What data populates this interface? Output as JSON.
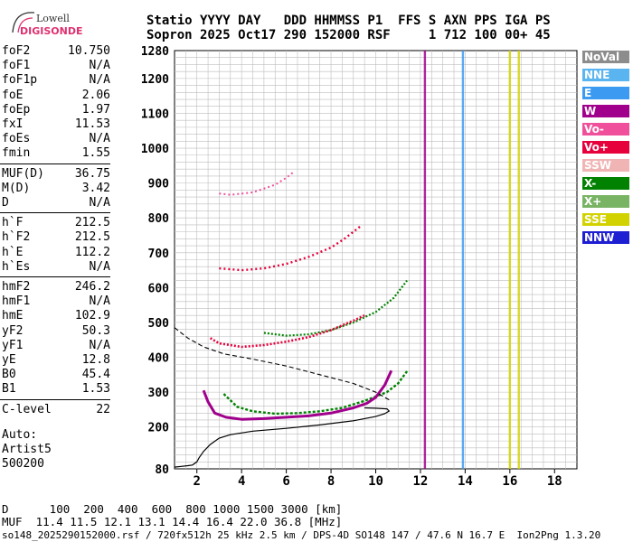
{
  "logo": {
    "line1": "Lowell",
    "line2": "DIGISONDE"
  },
  "header": {
    "labels": "Statio YYYY DAY   DDD HHMMSS P1  FFS S AXN PPS IGA PS",
    "values": "Sopron 2025 Oct17 290 152000 RSF     1 712 100 00+ 45"
  },
  "params_group1": [
    {
      "name": "foF2",
      "value": "10.750"
    },
    {
      "name": "foF1",
      "value": "N/A"
    },
    {
      "name": "foF1p",
      "value": "N/A"
    },
    {
      "name": "foE",
      "value": "2.06"
    },
    {
      "name": "foEp",
      "value": "1.97"
    },
    {
      "name": "fxI",
      "value": "11.53"
    },
    {
      "name": "foEs",
      "value": "N/A"
    },
    {
      "name": "fmin",
      "value": "1.55"
    }
  ],
  "params_group2": [
    {
      "name": "MUF(D)",
      "value": "36.75"
    },
    {
      "name": "M(D)",
      "value": "3.42"
    },
    {
      "name": "D",
      "value": "N/A"
    }
  ],
  "params_group3": [
    {
      "name": "h`F",
      "value": "212.5"
    },
    {
      "name": "h`F2",
      "value": "212.5"
    },
    {
      "name": "h`E",
      "value": "112.2"
    },
    {
      "name": "h`Es",
      "value": "N/A"
    }
  ],
  "params_group4": [
    {
      "name": "hmF2",
      "value": "246.2"
    },
    {
      "name": "hmF1",
      "value": "N/A"
    },
    {
      "name": "hmE",
      "value": "102.9"
    },
    {
      "name": "yF2",
      "value": "50.3"
    },
    {
      "name": "yF1",
      "value": "N/A"
    },
    {
      "name": "yE",
      "value": "12.8"
    },
    {
      "name": "B0",
      "value": "45.4"
    },
    {
      "name": "B1",
      "value": "1.53"
    }
  ],
  "params_group5": [
    {
      "name": "C-level",
      "value": "22"
    }
  ],
  "auto": {
    "line1": "Auto:",
    "line2": "Artist5",
    "line3": "500200"
  },
  "legend": [
    {
      "label": "NoVal",
      "color": "#8c8c8c"
    },
    {
      "label": "NNE",
      "color": "#5ab4f0"
    },
    {
      "label": "E",
      "color": "#3c9bf0"
    },
    {
      "label": "W",
      "color": "#a0008c"
    },
    {
      "label": "Vo-",
      "color": "#f0509b"
    },
    {
      "label": "Vo+",
      "color": "#e6003c"
    },
    {
      "label": "SSW",
      "color": "#f0b4b4"
    },
    {
      "label": "X-",
      "color": "#008200"
    },
    {
      "label": "X+",
      "color": "#78b464"
    },
    {
      "label": "SSE",
      "color": "#d2d200"
    },
    {
      "label": "NNW",
      "color": "#1e1ed2"
    }
  ],
  "footer": {
    "distance": "D      100  200  400  600  800 1000 1500 3000 [km]",
    "muf": "MUF  11.4 11.5 12.1 13.1 14.4 16.4 22.0 36.8 [MHz]",
    "info": "so148_2025290152000.rsf / 720fx512h 25 kHz 2.5 km / DPS-4D SO148 147 / 47.6 N 16.7 E  Ion2Png 1.3.20"
  },
  "chart_data": {
    "type": "scatter",
    "x_axis": {
      "label": "",
      "range": [
        1.0,
        19.0
      ],
      "ticks": [
        2,
        4,
        6,
        8,
        10,
        12,
        14,
        16,
        18
      ]
    },
    "y_axis": {
      "label": "",
      "range": [
        80,
        1280
      ],
      "ticks": [
        80,
        200,
        300,
        400,
        500,
        600,
        700,
        800,
        900,
        1000,
        1100,
        1200,
        1280
      ]
    },
    "grid": true,
    "legend_position": "right",
    "profile_solid": [
      [
        1.0,
        85
      ],
      [
        1.3,
        87
      ],
      [
        1.6,
        89
      ],
      [
        1.8,
        91
      ],
      [
        2.0,
        100
      ],
      [
        2.1,
        112
      ],
      [
        2.3,
        130
      ],
      [
        2.6,
        150
      ],
      [
        3.0,
        168
      ],
      [
        3.5,
        178
      ],
      [
        4.5,
        188
      ],
      [
        6.0,
        196
      ],
      [
        7.5,
        206
      ],
      [
        9.0,
        218
      ],
      [
        10.0,
        230
      ],
      [
        10.4,
        238
      ],
      [
        10.6,
        246
      ],
      [
        10.5,
        252
      ],
      [
        10.0,
        254
      ],
      [
        9.5,
        255
      ]
    ],
    "profile_dashed": [
      [
        1.0,
        485
      ],
      [
        1.6,
        455
      ],
      [
        2.3,
        430
      ],
      [
        3.2,
        410
      ],
      [
        4.5,
        395
      ],
      [
        6.0,
        375
      ],
      [
        7.5,
        350
      ],
      [
        9.0,
        325
      ],
      [
        10.0,
        300
      ],
      [
        10.6,
        278
      ]
    ],
    "trace_o_f2": [
      [
        2.3,
        305
      ],
      [
        2.5,
        272
      ],
      [
        2.8,
        240
      ],
      [
        3.3,
        228
      ],
      [
        4.0,
        222
      ],
      [
        5.0,
        224
      ],
      [
        6.0,
        228
      ],
      [
        7.0,
        232
      ],
      [
        8.0,
        240
      ],
      [
        9.0,
        255
      ],
      [
        9.6,
        268
      ],
      [
        10.0,
        285
      ],
      [
        10.4,
        320
      ],
      [
        10.7,
        362
      ]
    ],
    "trace_x_f2": [
      [
        3.2,
        295
      ],
      [
        3.8,
        258
      ],
      [
        4.5,
        245
      ],
      [
        5.5,
        238
      ],
      [
        6.5,
        240
      ],
      [
        7.5,
        245
      ],
      [
        8.5,
        255
      ],
      [
        9.5,
        275
      ],
      [
        10.5,
        300
      ],
      [
        11.0,
        325
      ],
      [
        11.4,
        360
      ]
    ],
    "trace_o_2hop": [
      [
        2.6,
        455
      ],
      [
        3.0,
        440
      ],
      [
        4.0,
        430
      ],
      [
        5.0,
        435
      ],
      [
        6.0,
        445
      ],
      [
        7.0,
        458
      ],
      [
        8.0,
        478
      ],
      [
        9.0,
        505
      ],
      [
        9.5,
        520
      ]
    ],
    "trace_x_2hop": [
      [
        5.0,
        470
      ],
      [
        6.0,
        462
      ],
      [
        7.0,
        466
      ],
      [
        8.0,
        478
      ],
      [
        9.0,
        500
      ],
      [
        10.0,
        530
      ],
      [
        10.8,
        570
      ],
      [
        11.4,
        620
      ]
    ],
    "trace_o_3hop": [
      [
        3.0,
        655
      ],
      [
        4.0,
        650
      ],
      [
        5.0,
        655
      ],
      [
        6.0,
        668
      ],
      [
        7.0,
        688
      ],
      [
        8.0,
        715
      ],
      [
        8.6,
        740
      ],
      [
        9.3,
        775
      ]
    ],
    "trace_o_4hop": [
      [
        3.0,
        870
      ],
      [
        3.5,
        866
      ],
      [
        4.5,
        873
      ],
      [
        5.5,
        895
      ],
      [
        6.0,
        915
      ],
      [
        6.3,
        930
      ]
    ],
    "vertical_bands": [
      {
        "x": 12.2,
        "ymin": 80,
        "ymax": 1280,
        "color": "#a0008c"
      },
      {
        "x": 13.9,
        "ymin": 80,
        "ymax": 1280,
        "color": "#3c9bf0"
      },
      {
        "x": 16.0,
        "ymin": 80,
        "ymax": 1280,
        "color": "#d2d200"
      },
      {
        "x": 16.4,
        "ymin": 80,
        "ymax": 1280,
        "color": "#d2d200"
      }
    ]
  }
}
